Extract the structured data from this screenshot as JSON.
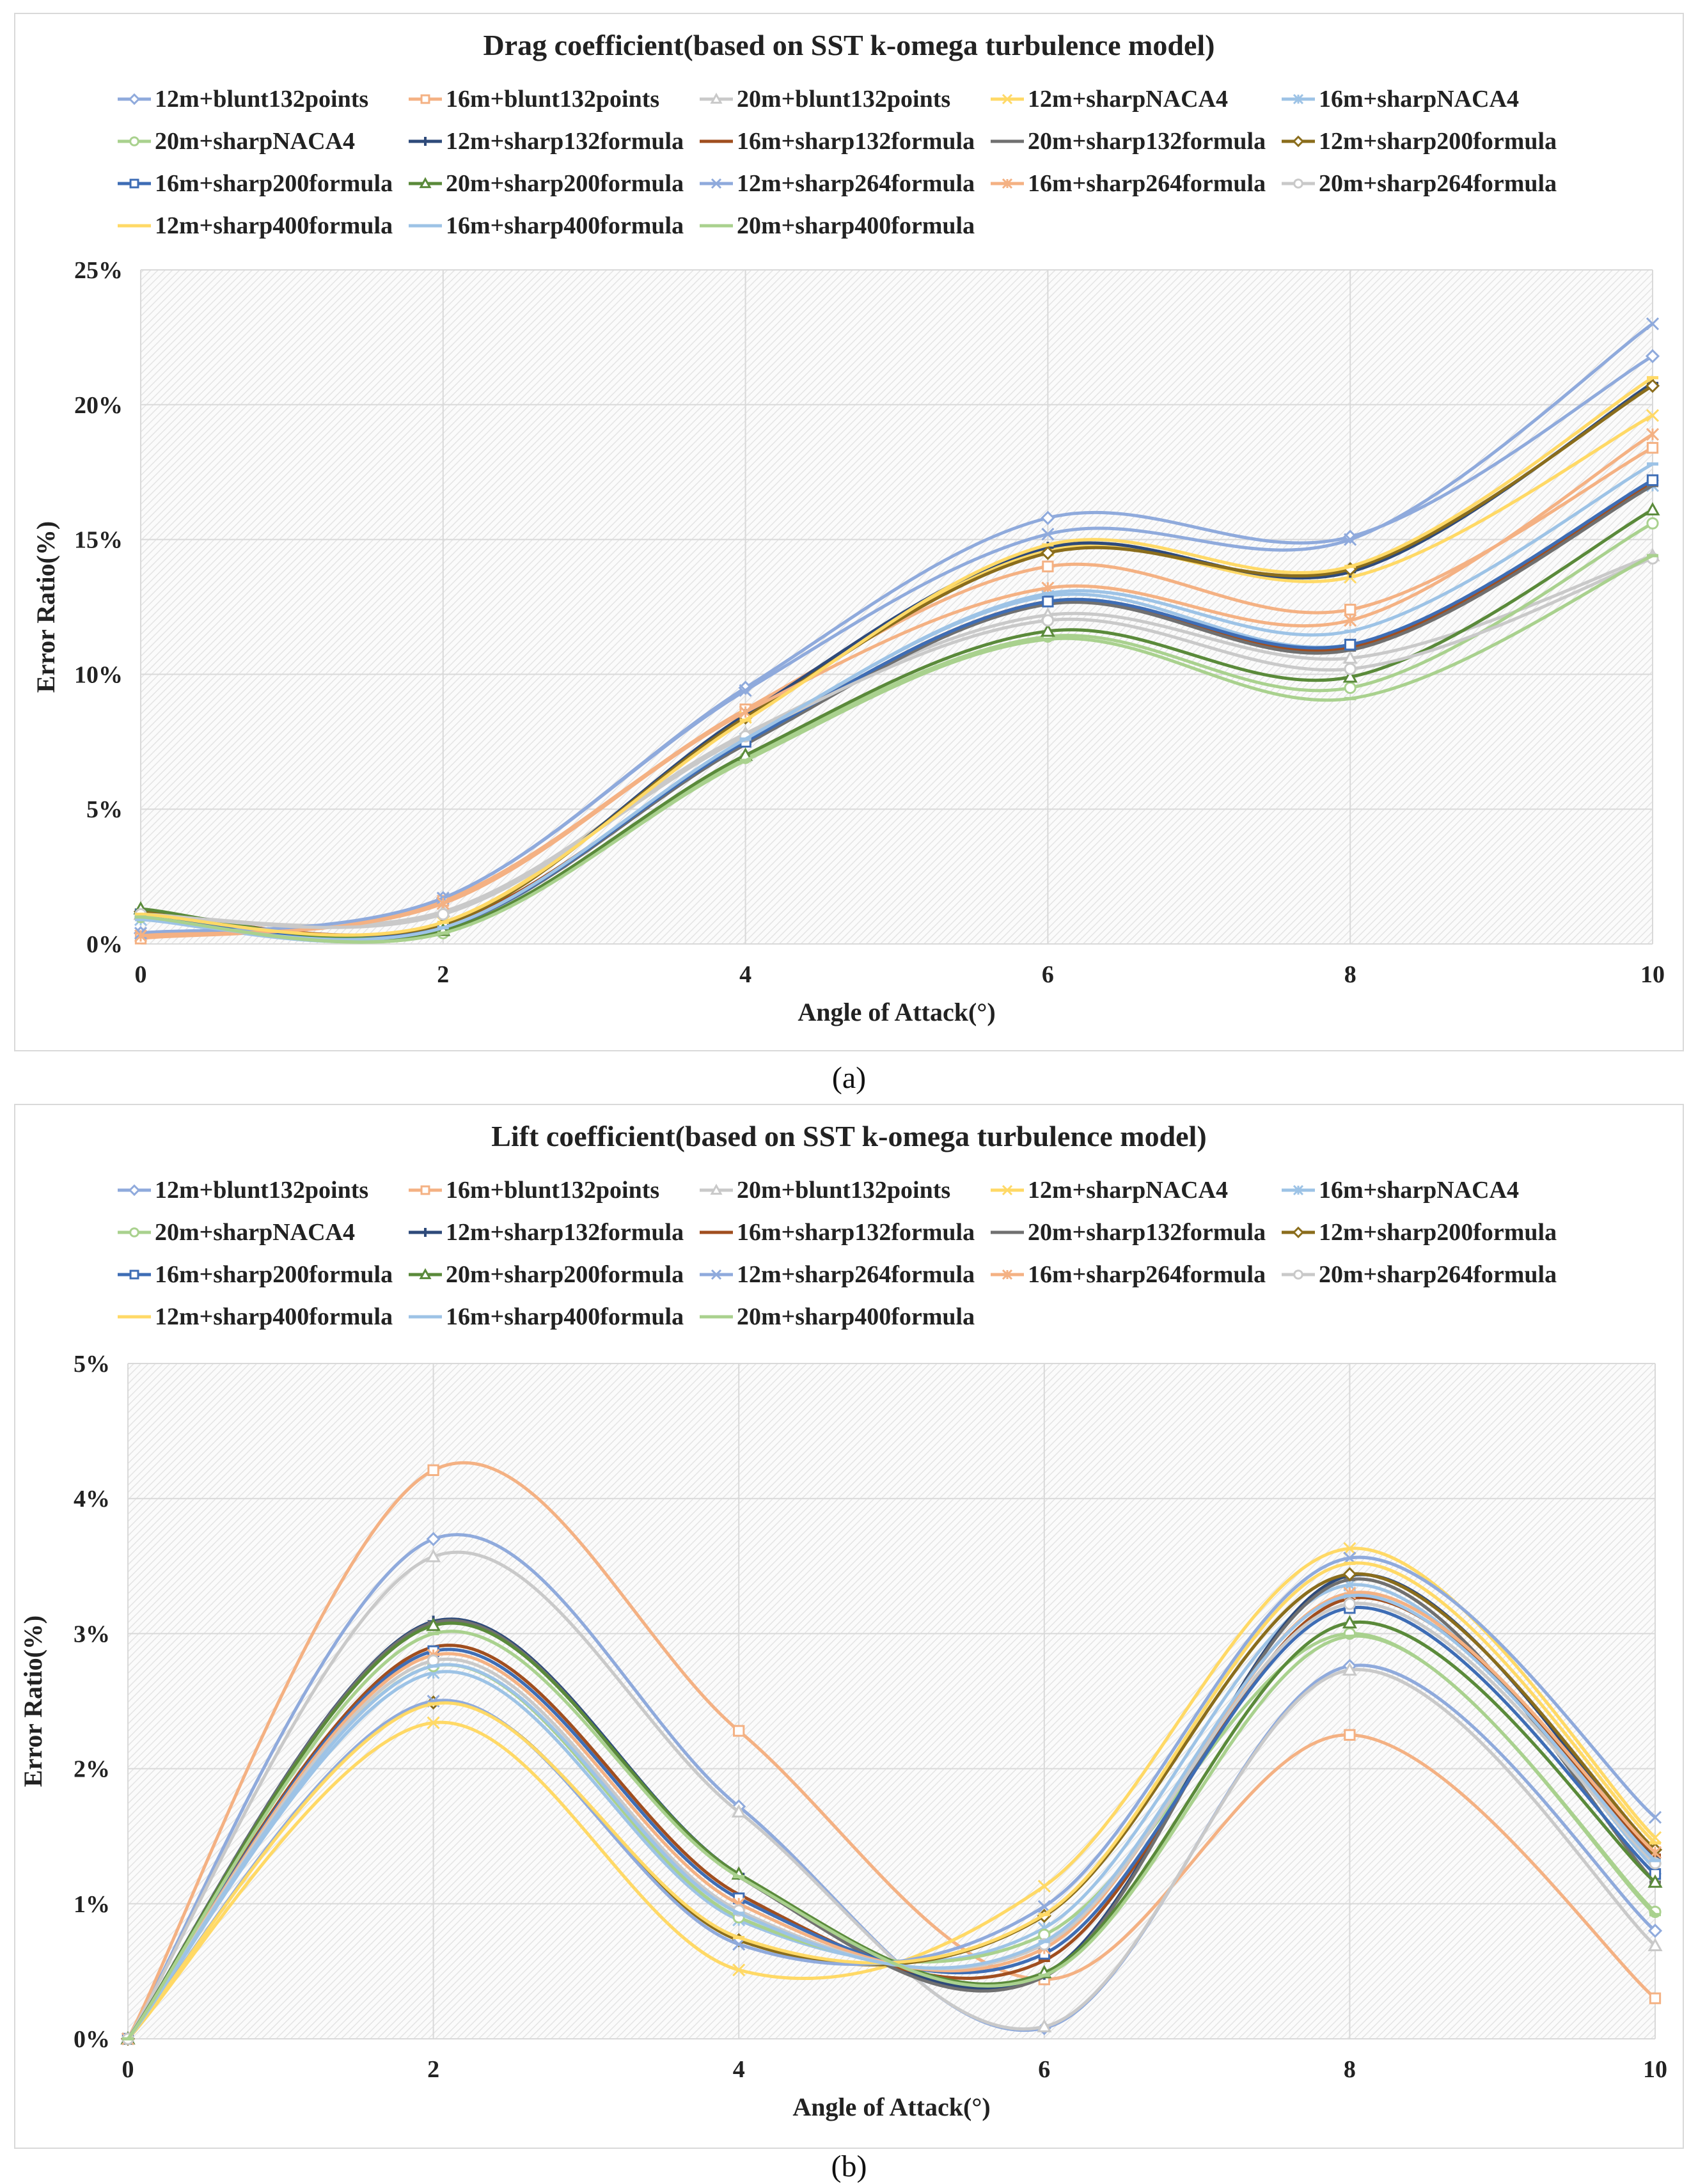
{
  "chart_data": [
    {
      "type": "line",
      "title": "Drag coefficient(based on SST k-omega turbulence model)",
      "xlabel": "Angle of Attack(°)",
      "ylabel": "Error Ratio(%)",
      "x": [
        0,
        2,
        4,
        6,
        8,
        10
      ],
      "x_ticks": [
        "0",
        "2",
        "4",
        "6",
        "8",
        "10"
      ],
      "ylim": [
        0,
        25
      ],
      "y_ticks": [
        "0%",
        "5%",
        "10%",
        "15%",
        "20%",
        "25%"
      ],
      "y_tick_values": [
        0,
        5,
        10,
        15,
        20,
        25
      ],
      "grid": true,
      "legend": "top",
      "caption": "(a)",
      "series": [
        {
          "name": "12m+blunt132points",
          "color": "#8faadc",
          "marker": "diamond",
          "values": [
            0.4,
            1.7,
            9.5,
            15.8,
            15.1,
            21.8
          ]
        },
        {
          "name": "16m+blunt132points",
          "color": "#f4b183",
          "marker": "square",
          "values": [
            0.2,
            1.6,
            8.7,
            14.0,
            12.4,
            18.4
          ]
        },
        {
          "name": "20m+blunt132points",
          "color": "#c9c9c9",
          "marker": "triangle",
          "values": [
            1.1,
            1.2,
            7.8,
            12.2,
            10.6,
            14.4
          ]
        },
        {
          "name": "12m+sharpNACA4",
          "color": "#ffd966",
          "marker": "x",
          "values": [
            1.1,
            0.8,
            8.4,
            14.6,
            13.6,
            19.6
          ]
        },
        {
          "name": "16m+sharpNACA4",
          "color": "#9dc3e6",
          "marker": "star",
          "values": [
            0.9,
            0.5,
            7.6,
            12.9,
            11.1,
            17.0
          ]
        },
        {
          "name": "20m+sharpNACA4",
          "color": "#a9d18e",
          "marker": "circle",
          "values": [
            1.0,
            0.4,
            6.9,
            11.4,
            9.5,
            15.6
          ]
        },
        {
          "name": "12m+sharp132formula",
          "color": "#2e4a7a",
          "marker": "plus",
          "values": [
            1.2,
            0.7,
            8.5,
            14.7,
            13.8,
            20.8
          ]
        },
        {
          "name": "16m+sharp132formula",
          "color": "#a04e1f",
          "marker": "dash",
          "values": [
            1.2,
            0.7,
            7.5,
            12.7,
            11.0,
            17.1
          ]
        },
        {
          "name": "20m+sharp132formula",
          "color": "#707070",
          "marker": "dash",
          "values": [
            1.2,
            0.6,
            7.4,
            12.6,
            10.9,
            17.0
          ]
        },
        {
          "name": "12m+sharp200formula",
          "color": "#8a6d1c",
          "marker": "diamond",
          "values": [
            1.2,
            0.7,
            8.4,
            14.5,
            13.9,
            20.7
          ]
        },
        {
          "name": "16m+sharp200formula",
          "color": "#3e6db5",
          "marker": "square",
          "values": [
            1.1,
            0.6,
            7.5,
            12.7,
            11.1,
            17.2
          ]
        },
        {
          "name": "20m+sharp200formula",
          "color": "#5a8a3a",
          "marker": "triangle",
          "values": [
            1.3,
            0.5,
            7.0,
            11.6,
            9.9,
            16.1
          ]
        },
        {
          "name": "12m+sharp264formula",
          "color": "#8faadc",
          "marker": "x",
          "values": [
            0.4,
            1.7,
            9.4,
            15.2,
            15.0,
            23.0
          ]
        },
        {
          "name": "16m+sharp264formula",
          "color": "#f4b183",
          "marker": "star",
          "values": [
            0.3,
            1.5,
            8.6,
            13.2,
            12.0,
            18.9
          ]
        },
        {
          "name": "20m+sharp264formula",
          "color": "#c9c9c9",
          "marker": "circle",
          "values": [
            1.1,
            1.1,
            7.7,
            12.0,
            10.2,
            14.3
          ]
        },
        {
          "name": "12m+sharp400formula",
          "color": "#ffd966",
          "marker": "dash",
          "values": [
            1.1,
            0.8,
            8.3,
            14.8,
            14.0,
            21.0
          ]
        },
        {
          "name": "16m+sharp400formula",
          "color": "#9dc3e6",
          "marker": "dash",
          "values": [
            0.9,
            0.6,
            7.6,
            13.0,
            11.6,
            17.8
          ]
        },
        {
          "name": "20m+sharp400formula",
          "color": "#a9d18e",
          "marker": "dash",
          "values": [
            1.0,
            0.4,
            6.8,
            11.3,
            9.1,
            14.4
          ]
        }
      ]
    },
    {
      "type": "line",
      "title": "Lift coefficient(based on SST k-omega turbulence model)",
      "xlabel": "Angle of Attack(°)",
      "ylabel": "Error Ratio(%)",
      "x": [
        0,
        2,
        4,
        6,
        8,
        10
      ],
      "x_ticks": [
        "0",
        "2",
        "4",
        "6",
        "8",
        "10"
      ],
      "ylim": [
        0,
        5
      ],
      "y_ticks": [
        "0%",
        "1%",
        "2%",
        "3%",
        "4%",
        "5%"
      ],
      "y_tick_values": [
        0,
        1,
        2,
        3,
        4,
        5
      ],
      "grid": true,
      "legend": "top",
      "caption": "(b)",
      "series": [
        {
          "name": "12m+blunt132points",
          "color": "#8faadc",
          "marker": "diamond",
          "values": [
            0,
            3.7,
            1.72,
            0.08,
            2.76,
            0.8
          ]
        },
        {
          "name": "16m+blunt132points",
          "color": "#f4b183",
          "marker": "square",
          "values": [
            0,
            4.21,
            2.28,
            0.44,
            2.25,
            0.3
          ]
        },
        {
          "name": "20m+blunt132points",
          "color": "#c9c9c9",
          "marker": "triangle",
          "values": [
            0,
            3.57,
            1.68,
            0.09,
            2.73,
            0.69
          ]
        },
        {
          "name": "12m+sharpNACA4",
          "color": "#ffd966",
          "marker": "x",
          "values": [
            0,
            2.34,
            0.51,
            1.13,
            3.63,
            1.49
          ]
        },
        {
          "name": "16m+sharpNACA4",
          "color": "#9dc3e6",
          "marker": "star",
          "values": [
            0,
            2.71,
            0.88,
            0.82,
            3.36,
            1.26
          ]
        },
        {
          "name": "20m+sharpNACA4",
          "color": "#a9d18e",
          "marker": "circle",
          "values": [
            0,
            2.76,
            0.9,
            0.77,
            3.0,
            0.94
          ]
        },
        {
          "name": "12m+sharp132formula",
          "color": "#2e4a7a",
          "marker": "plus",
          "values": [
            0,
            3.09,
            1.22,
            0.48,
            3.43,
            1.34
          ]
        },
        {
          "name": "16m+sharp132formula",
          "color": "#a04e1f",
          "marker": "dash",
          "values": [
            0,
            2.9,
            1.07,
            0.58,
            3.26,
            1.36
          ]
        },
        {
          "name": "20m+sharp132formula",
          "color": "#707070",
          "marker": "dash",
          "values": [
            0,
            3.08,
            1.2,
            0.46,
            3.4,
            1.16
          ]
        },
        {
          "name": "12m+sharp200formula",
          "color": "#8a6d1c",
          "marker": "diamond",
          "values": [
            0,
            2.49,
            0.73,
            0.91,
            3.44,
            1.4
          ]
        },
        {
          "name": "16m+sharp200formula",
          "color": "#3e6db5",
          "marker": "square",
          "values": [
            0,
            2.87,
            1.04,
            0.63,
            3.19,
            1.22
          ]
        },
        {
          "name": "20m+sharp200formula",
          "color": "#5a8a3a",
          "marker": "triangle",
          "values": [
            0,
            3.06,
            1.22,
            0.49,
            3.08,
            1.16
          ]
        },
        {
          "name": "12m+sharp264formula",
          "color": "#8faadc",
          "marker": "x",
          "values": [
            0,
            2.5,
            0.7,
            0.98,
            3.56,
            1.64
          ]
        },
        {
          "name": "16m+sharp264formula",
          "color": "#f4b183",
          "marker": "star",
          "values": [
            0,
            2.84,
            1.0,
            0.67,
            3.3,
            1.38
          ]
        },
        {
          "name": "20m+sharp264formula",
          "color": "#c9c9c9",
          "marker": "circle",
          "values": [
            0,
            2.8,
            0.95,
            0.7,
            3.22,
            1.3
          ]
        },
        {
          "name": "12m+sharp400formula",
          "color": "#ffd966",
          "marker": "dash",
          "values": [
            0,
            2.48,
            0.75,
            0.92,
            3.52,
            1.45
          ]
        },
        {
          "name": "16m+sharp400formula",
          "color": "#9dc3e6",
          "marker": "dash",
          "values": [
            0,
            2.76,
            0.93,
            0.72,
            3.28,
            1.32
          ]
        },
        {
          "name": "20m+sharp400formula",
          "color": "#a9d18e",
          "marker": "dash",
          "values": [
            0,
            3.0,
            1.2,
            0.47,
            2.98,
            0.92
          ]
        }
      ]
    }
  ]
}
